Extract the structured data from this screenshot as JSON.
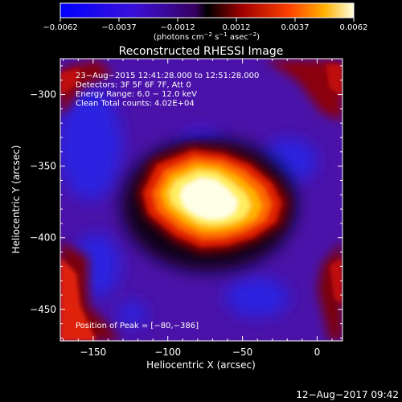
{
  "chart_data": {
    "type": "heatmap",
    "title": "Reconstructed RHESSI Image",
    "colorbar": {
      "ticks": [
        "−0.0062",
        "−0.0037",
        "−0.0012",
        "0.0012",
        "0.0037",
        "0.0062"
      ],
      "range": [
        -0.0062,
        0.0062
      ],
      "unit_base": "(photons cm",
      "unit_exp1": "−2",
      "unit_mid1": " s",
      "unit_exp2": "−1",
      "unit_mid2": " asec",
      "unit_exp3": "−2",
      "unit_end": ")"
    },
    "xlabel": "Heliocentric X (arcsec)",
    "ylabel": "Heliocentric Y (arcsec)",
    "xlim": [
      -172,
      17
    ],
    "ylim": [
      -472,
      -275
    ],
    "x_ticks": [
      {
        "value": -150,
        "label": "−150"
      },
      {
        "value": -100,
        "label": "−100"
      },
      {
        "value": -50,
        "label": "−50"
      },
      {
        "value": 0,
        "label": "0"
      }
    ],
    "y_ticks": [
      {
        "value": -300,
        "label": "−300"
      },
      {
        "value": -350,
        "label": "−350"
      },
      {
        "value": -400,
        "label": "−400"
      },
      {
        "value": -450,
        "label": "−450"
      }
    ],
    "info_lines": [
      "23−Aug−2015 12:41:28.000 to 12:51:28.000",
      "Detectors: 3F 5F 6F 7F, Att 0",
      "Energy Range: 6.0 − 12.0 keV",
      "Clean     Total counts: 4.02E+04"
    ],
    "peak_text": "Position of Peak = [−80,−386]",
    "peak": [
      -80,
      -386
    ]
  },
  "footer": {
    "timestamp": "12−Aug−2017 09:42"
  }
}
